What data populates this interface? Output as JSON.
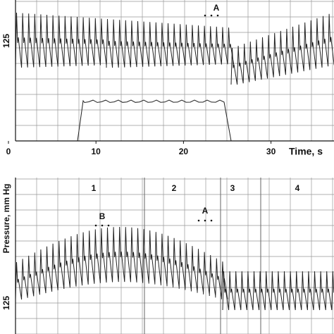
{
  "top_panel": {
    "xlim": [
      0,
      37.2
    ],
    "xticks": [
      0,
      10,
      20,
      30
    ],
    "x_label": "Time, s",
    "ytick_label": "125",
    "annotation": "A"
  },
  "bottom_panel": {
    "y_label": "Pressure, mm Hg",
    "ytick_label": "125",
    "phase_labels": [
      "1",
      "2",
      "3",
      "4"
    ],
    "annotations": [
      "B",
      "A"
    ]
  }
}
